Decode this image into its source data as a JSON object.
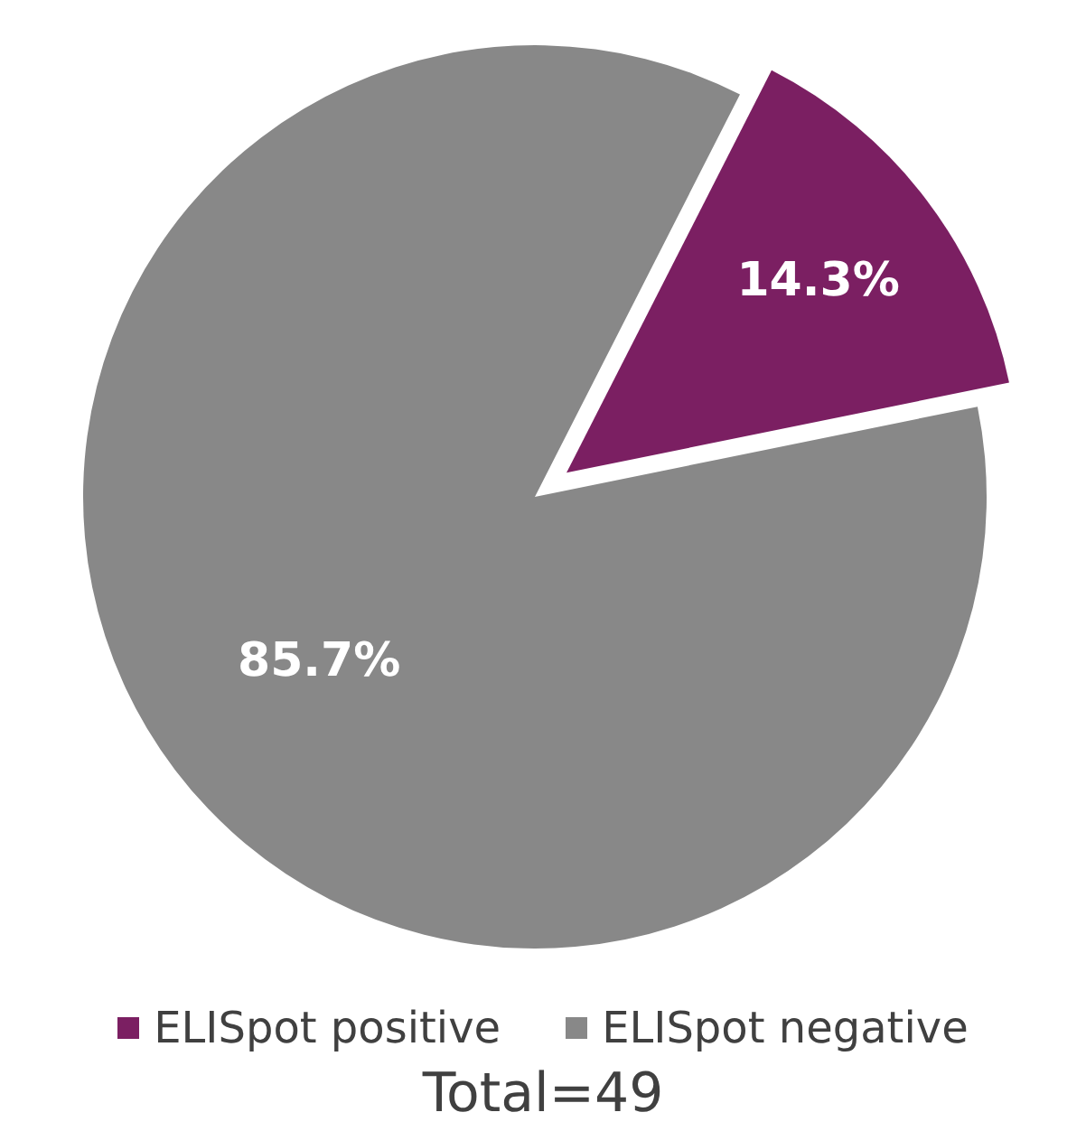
{
  "chart_data": {
    "type": "pie",
    "categories": [
      "ELISpot positive",
      "ELISpot negative"
    ],
    "values": [
      14.3,
      85.7
    ],
    "colors": [
      "#7b1f62",
      "#888888"
    ],
    "value_labels": [
      "14.3%",
      "85.7%"
    ],
    "legend": "bottom",
    "annotations": [
      "Total=49"
    ]
  }
}
